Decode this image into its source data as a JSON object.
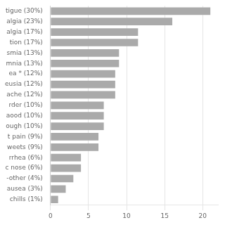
{
  "chart_data": {
    "type": "bar",
    "orientation": "horizontal",
    "categories": [
      "tigue (30%)",
      "algia (23%)",
      "algia (17%)",
      "tion (17%)",
      "smia (13%)",
      "mnia (13%)",
      "ea * (12%)",
      "eusia (12%)",
      "ache (12%)",
      "rder (10%)",
      "aood (10%)",
      "ough (10%)",
      "t pain (9%)",
      "weets (9%)",
      "rrhea (6%)",
      "c nose (6%)",
      "-other (4%)",
      "ausea (3%)",
      " chills (1%)"
    ],
    "values": [
      21,
      16,
      11.5,
      11.5,
      9,
      9,
      8.5,
      8.5,
      8.5,
      7,
      7,
      7,
      6.3,
      6.3,
      4,
      4,
      3,
      2,
      1
    ],
    "color": "#aaaaaa",
    "xlim": [
      0,
      22
    ],
    "xticks": [
      0,
      5,
      10,
      15,
      20
    ],
    "grid": true
  }
}
